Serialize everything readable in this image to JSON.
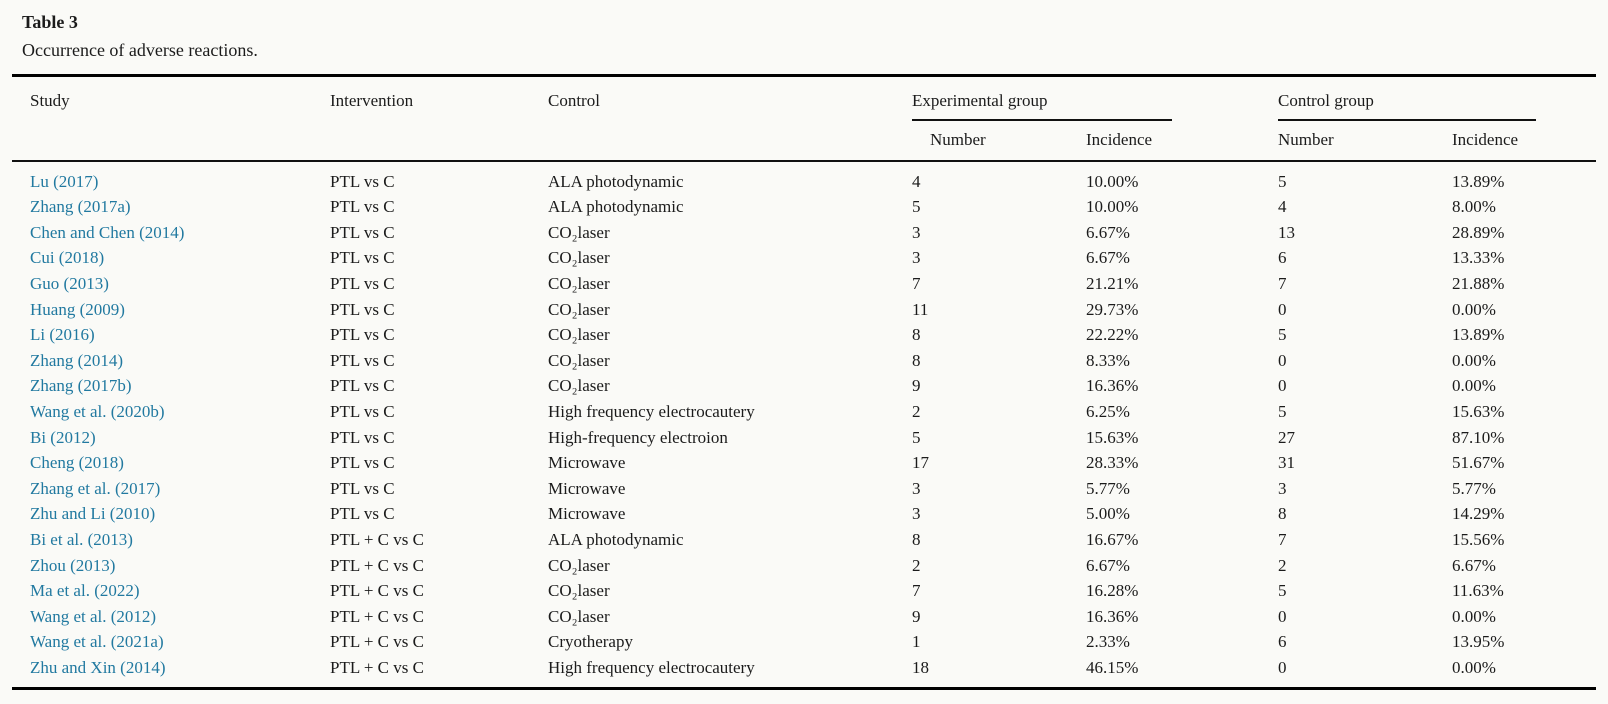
{
  "colors": {
    "study_link": "#2179a0",
    "text": "#1b1b1b",
    "background": "#fafaf7"
  },
  "table": {
    "label": "Table 3",
    "caption": "Occurrence of adverse reactions.",
    "columns": {
      "study": "Study",
      "intervention": "Intervention",
      "control": "Control",
      "experimental_group": "Experimental group",
      "control_group": "Control group",
      "exp_number": "Number",
      "exp_incidence": "Incidence",
      "ctrl_number": "Number",
      "ctrl_incidence": "Incidence"
    },
    "rows": [
      {
        "study": "Lu (2017)",
        "intervention": "PTL vs C",
        "control": "ALA photodynamic",
        "exp_number": "4",
        "exp_incidence": "10.00%",
        "ctrl_number": "5",
        "ctrl_incidence": "13.89%"
      },
      {
        "study": "Zhang (2017a)",
        "intervention": "PTL vs C",
        "control": "ALA photodynamic",
        "exp_number": "5",
        "exp_incidence": "10.00%",
        "ctrl_number": "4",
        "ctrl_incidence": "8.00%"
      },
      {
        "study": "Chen and Chen (2014)",
        "intervention": "PTL vs C",
        "control": "CO₂laser",
        "exp_number": "3",
        "exp_incidence": "6.67%",
        "ctrl_number": "13",
        "ctrl_incidence": "28.89%"
      },
      {
        "study": "Cui (2018)",
        "intervention": "PTL vs C",
        "control": "CO₂laser",
        "exp_number": "3",
        "exp_incidence": "6.67%",
        "ctrl_number": "6",
        "ctrl_incidence": "13.33%"
      },
      {
        "study": "Guo (2013)",
        "intervention": "PTL vs C",
        "control": "CO₂laser",
        "exp_number": "7",
        "exp_incidence": "21.21%",
        "ctrl_number": "7",
        "ctrl_incidence": "21.88%"
      },
      {
        "study": "Huang (2009)",
        "intervention": "PTL vs C",
        "control": "CO₂laser",
        "exp_number": "11",
        "exp_incidence": "29.73%",
        "ctrl_number": "0",
        "ctrl_incidence": "0.00%"
      },
      {
        "study": "Li (2016)",
        "intervention": "PTL vs C",
        "control": "CO₂laser",
        "exp_number": "8",
        "exp_incidence": "22.22%",
        "ctrl_number": "5",
        "ctrl_incidence": "13.89%"
      },
      {
        "study": "Zhang (2014)",
        "intervention": "PTL vs C",
        "control": "CO₂laser",
        "exp_number": "8",
        "exp_incidence": "8.33%",
        "ctrl_number": "0",
        "ctrl_incidence": "0.00%"
      },
      {
        "study": "Zhang (2017b)",
        "intervention": "PTL vs C",
        "control": "CO₂laser",
        "exp_number": "9",
        "exp_incidence": "16.36%",
        "ctrl_number": "0",
        "ctrl_incidence": "0.00%"
      },
      {
        "study": "Wang et al. (2020b)",
        "intervention": "PTL vs C",
        "control": "High frequency electrocautery",
        "exp_number": "2",
        "exp_incidence": "6.25%",
        "ctrl_number": "5",
        "ctrl_incidence": "15.63%"
      },
      {
        "study": "Bi (2012)",
        "intervention": "PTL vs C",
        "control": "High-frequency electroion",
        "exp_number": "5",
        "exp_incidence": "15.63%",
        "ctrl_number": "27",
        "ctrl_incidence": "87.10%"
      },
      {
        "study": "Cheng (2018)",
        "intervention": "PTL vs C",
        "control": "Microwave",
        "exp_number": "17",
        "exp_incidence": "28.33%",
        "ctrl_number": "31",
        "ctrl_incidence": "51.67%"
      },
      {
        "study": "Zhang et al. (2017)",
        "intervention": "PTL vs C",
        "control": "Microwave",
        "exp_number": "3",
        "exp_incidence": "5.77%",
        "ctrl_number": "3",
        "ctrl_incidence": "5.77%"
      },
      {
        "study": "Zhu and Li (2010)",
        "intervention": "PTL vs C",
        "control": "Microwave",
        "exp_number": "3",
        "exp_incidence": "5.00%",
        "ctrl_number": "8",
        "ctrl_incidence": "14.29%"
      },
      {
        "study": "Bi et al. (2013)",
        "intervention": "PTL + C vs C",
        "control": "ALA photodynamic",
        "exp_number": "8",
        "exp_incidence": "16.67%",
        "ctrl_number": "7",
        "ctrl_incidence": "15.56%"
      },
      {
        "study": "Zhou (2013)",
        "intervention": "PTL + C vs C",
        "control": "CO₂laser",
        "exp_number": "2",
        "exp_incidence": "6.67%",
        "ctrl_number": "2",
        "ctrl_incidence": "6.67%"
      },
      {
        "study": "Ma et al. (2022)",
        "intervention": "PTL + C vs C",
        "control": "CO₂laser",
        "exp_number": "7",
        "exp_incidence": "16.28%",
        "ctrl_number": "5",
        "ctrl_incidence": "11.63%"
      },
      {
        "study": "Wang et al. (2012)",
        "intervention": "PTL + C vs C",
        "control": "CO₂laser",
        "exp_number": "9",
        "exp_incidence": "16.36%",
        "ctrl_number": "0",
        "ctrl_incidence": "0.00%"
      },
      {
        "study": "Wang et al. (2021a)",
        "intervention": "PTL + C vs C",
        "control": "Cryotherapy",
        "exp_number": "1",
        "exp_incidence": "2.33%",
        "ctrl_number": "6",
        "ctrl_incidence": "13.95%"
      },
      {
        "study": "Zhu and Xin (2014)",
        "intervention": "PTL + C vs C",
        "control": "High frequency electrocautery",
        "exp_number": "18",
        "exp_incidence": "46.15%",
        "ctrl_number": "0",
        "ctrl_incidence": "0.00%"
      }
    ]
  }
}
